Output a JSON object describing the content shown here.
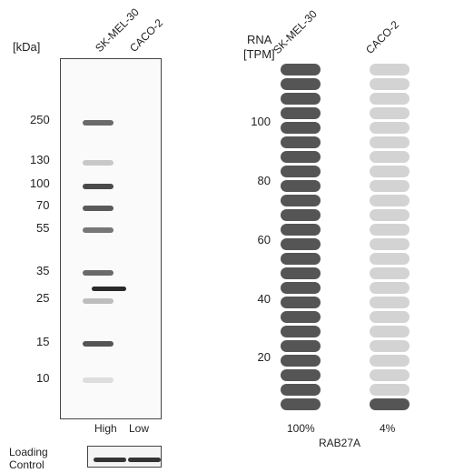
{
  "blot": {
    "unit_label": "[kDa]",
    "lanes": [
      "SK-MEL-30",
      "CACO-2"
    ],
    "markers": [
      "250",
      "130",
      "100",
      "70",
      "55",
      "35",
      "25",
      "15",
      "10"
    ],
    "lane_levels": [
      "High",
      "Low"
    ],
    "loading_control_label": [
      "Loading",
      "Control"
    ]
  },
  "rna": {
    "axis_title": [
      "RNA",
      "[TPM]"
    ],
    "samples": [
      "SK-MEL-30",
      "CACO-2"
    ],
    "ticks": [
      "100",
      "80",
      "60",
      "40",
      "20"
    ],
    "gene": "RAB27A",
    "percent_labels": [
      "100%",
      "4%"
    ],
    "levels": [
      1.0,
      0.04
    ],
    "colors": {
      "high": "#555555",
      "low": "#d3d3d3"
    }
  }
}
